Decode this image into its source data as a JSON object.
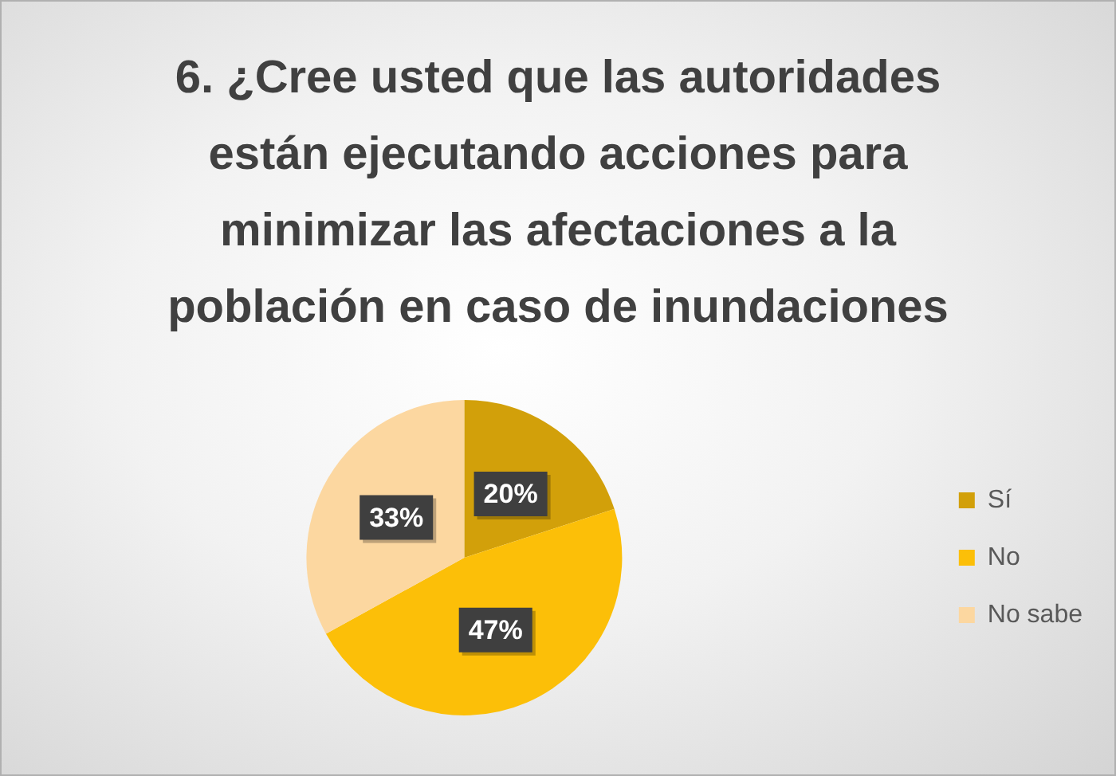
{
  "chart_data": {
    "type": "pie",
    "title": "6. ¿Cree usted que las autoridades están ejecutando acciones para minimizar las afectaciones a la población en caso de inundaciones",
    "categories": [
      "Sí",
      "No",
      "No sabe"
    ],
    "values": [
      20,
      47,
      33
    ],
    "colors": [
      "#d2a00a",
      "#fcbf08",
      "#fcd7a0"
    ],
    "value_labels": [
      "20%",
      "47%",
      "33%"
    ],
    "legend": "right"
  }
}
